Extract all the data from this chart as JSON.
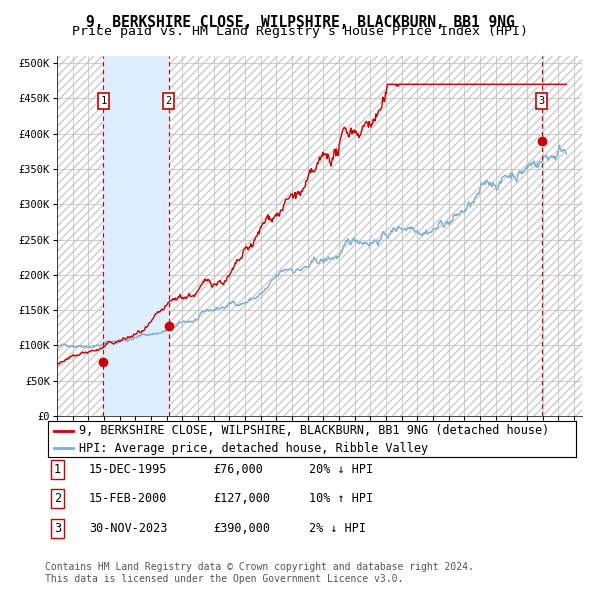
{
  "title": "9, BERKSHIRE CLOSE, WILPSHIRE, BLACKBURN, BB1 9NG",
  "subtitle": "Price paid vs. HM Land Registry's House Price Index (HPI)",
  "yticks": [
    0,
    50000,
    100000,
    150000,
    200000,
    250000,
    300000,
    350000,
    400000,
    450000,
    500000
  ],
  "ytick_labels": [
    "£0",
    "£50K",
    "£100K",
    "£150K",
    "£200K",
    "£250K",
    "£300K",
    "£350K",
    "£400K",
    "£450K",
    "£500K"
  ],
  "xmin": 1993.0,
  "xmax": 2026.5,
  "ymin": 0,
  "ymax": 510000,
  "sale_dates": [
    1995.96,
    2000.12,
    2023.92
  ],
  "sale_prices": [
    76000,
    127000,
    390000
  ],
  "sale_labels": [
    "1",
    "2",
    "3"
  ],
  "vline_color": "#cc0000",
  "shade_color": "#ddeeff",
  "dot_color": "#cc0000",
  "red_line_color": "#cc0000",
  "blue_line_color": "#7bafd4",
  "background_color": "#ffffff",
  "grid_color": "#bbbbbb",
  "legend_entries": [
    "9, BERKSHIRE CLOSE, WILPSHIRE, BLACKBURN, BB1 9NG (detached house)",
    "HPI: Average price, detached house, Ribble Valley"
  ],
  "table_data": [
    [
      "1",
      "15-DEC-1995",
      "£76,000",
      "20% ↓ HPI"
    ],
    [
      "2",
      "15-FEB-2000",
      "£127,000",
      "10% ↑ HPI"
    ],
    [
      "3",
      "30-NOV-2023",
      "£390,000",
      "2% ↓ HPI"
    ]
  ],
  "footnote": "Contains HM Land Registry data © Crown copyright and database right 2024.\nThis data is licensed under the Open Government Licence v3.0.",
  "title_fontsize": 10.5,
  "subtitle_fontsize": 9.5,
  "tick_fontsize": 7.5,
  "legend_fontsize": 8.5,
  "table_fontsize": 8.5,
  "footnote_fontsize": 7.0
}
